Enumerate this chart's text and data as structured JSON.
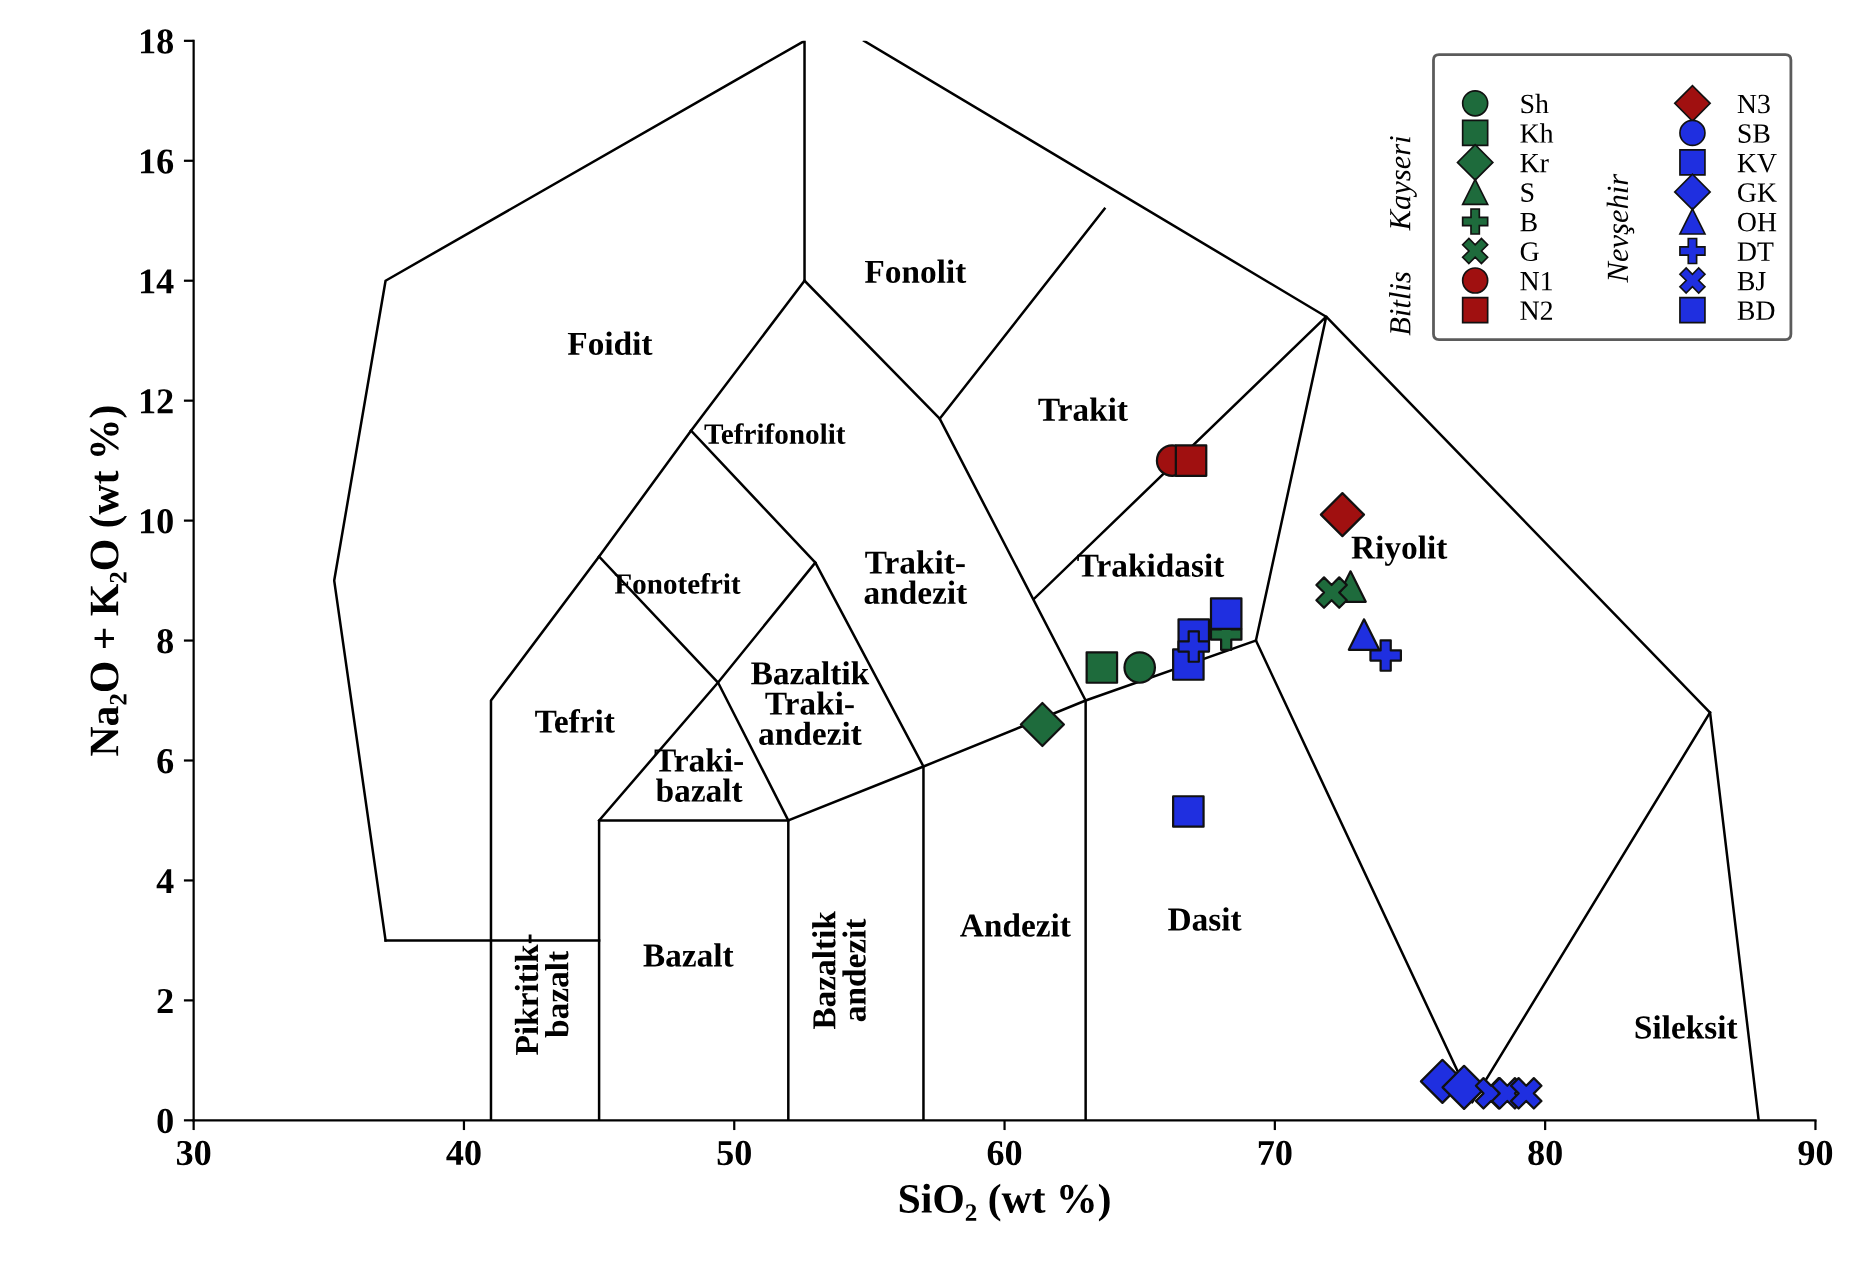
{
  "chart_data": {
    "type": "scatter",
    "xlabel": "SiO₂ (wt %)",
    "ylabel": "Na₂O + K₂O (wt %)",
    "xlim": [
      30,
      90
    ],
    "xticks": [
      30,
      40,
      50,
      60,
      70,
      80,
      90
    ],
    "ylim": [
      0,
      18
    ],
    "yticks": [
      0,
      2,
      4,
      6,
      8,
      10,
      12,
      14,
      16,
      18
    ],
    "grid": false,
    "legend": "top right",
    "series": [
      {
        "name": "Sh",
        "color": "#1e6b3c",
        "marker": "circle",
        "x": [
          65.0
        ],
        "values": [
          7.55
        ]
      },
      {
        "name": "Kh",
        "color": "#1e6b3c",
        "marker": "square",
        "x": [
          63.6
        ],
        "values": [
          7.55
        ]
      },
      {
        "name": "Kr",
        "color": "#1e6b3c",
        "marker": "diamond",
        "x": [
          61.4
        ],
        "values": [
          6.6
        ]
      },
      {
        "name": "S",
        "color": "#1e6b3c",
        "marker": "triangle",
        "x": [
          72.8
        ],
        "values": [
          8.9
        ]
      },
      {
        "name": "B",
        "color": "#1e6b3c",
        "marker": "plus",
        "x": [
          68.2
        ],
        "values": [
          8.1
        ]
      },
      {
        "name": "G",
        "color": "#1e6b3c",
        "marker": "cross",
        "x": [
          72.1
        ],
        "values": [
          8.8
        ]
      },
      {
        "name": "N1",
        "color": "#a01010",
        "marker": "circle",
        "x": [
          66.2
        ],
        "values": [
          11.0
        ]
      },
      {
        "name": "N2",
        "color": "#a01010",
        "marker": "square",
        "x": [
          66.9
        ],
        "values": [
          11.0
        ]
      },
      {
        "name": "N3",
        "color": "#a01010",
        "marker": "diamond",
        "x": [
          72.5
        ],
        "values": [
          10.1
        ]
      },
      {
        "name": "SB",
        "color": "#1f2fe0",
        "marker": "circle"
      },
      {
        "name": "KV",
        "color": "#1f2fe0",
        "marker": "square",
        "x": [
          67.0,
          66.8,
          66.8
        ],
        "values": [
          8.1,
          7.6,
          5.15
        ]
      },
      {
        "name": "GK",
        "color": "#1f2fe0",
        "marker": "diamond",
        "x": [
          76.2,
          77.0
        ],
        "values": [
          0.65,
          0.55
        ]
      },
      {
        "name": "OH",
        "color": "#1f2fe0",
        "marker": "triangle",
        "x": [
          73.3
        ],
        "values": [
          8.1
        ]
      },
      {
        "name": "DT",
        "color": "#1f2fe0",
        "marker": "plus",
        "x": [
          67.0,
          74.1
        ],
        "values": [
          7.9,
          7.75
        ]
      },
      {
        "name": "BJ",
        "color": "#1f2fe0",
        "marker": "cross",
        "x": [
          78.0,
          78.6,
          79.3
        ],
        "values": [
          0.45,
          0.45,
          0.45
        ]
      },
      {
        "name": "BD",
        "color": "#1f2fe0",
        "marker": "square",
        "x": [
          68.2
        ],
        "values": [
          8.45
        ]
      },
      {
        "type": "line",
        "color": "#000000",
        "x": [
          37.1,
          35.2,
          37.1,
          52.6,
          52.6
        ],
        "values": [
          3.0,
          9.0,
          14.0,
          18.0,
          14.0
        ]
      },
      {
        "type": "line",
        "color": "#000000",
        "x": [
          37.1,
          45.0
        ],
        "values": [
          3.0,
          3.0
        ]
      },
      {
        "type": "line",
        "color": "#000000",
        "x": [
          41.0,
          41.0,
          45.0,
          48.4,
          52.6
        ],
        "values": [
          0.0,
          7.0,
          9.4,
          11.5,
          14.0
        ]
      },
      {
        "type": "line",
        "color": "#000000",
        "x": [
          45.0,
          45.0,
          52.0,
          52.0
        ],
        "values": [
          0.0,
          5.0,
          5.0,
          0.0
        ]
      },
      {
        "type": "line",
        "color": "#000000",
        "x": [
          45.0,
          49.4,
          53.0
        ],
        "values": [
          5.0,
          7.3,
          9.3
        ]
      },
      {
        "type": "line",
        "color": "#000000",
        "x": [
          45.0,
          49.4,
          52.0
        ],
        "values": [
          9.4,
          7.3,
          5.0
        ]
      },
      {
        "type": "line",
        "color": "#000000",
        "x": [
          48.4,
          53.0,
          57.0,
          57.0
        ],
        "values": [
          11.5,
          9.3,
          5.9,
          0.0
        ]
      },
      {
        "type": "line",
        "color": "#000000",
        "x": [
          52.6,
          57.6,
          63.0,
          63.0
        ],
        "values": [
          14.0,
          11.7,
          7.0,
          0.0
        ]
      },
      {
        "type": "line",
        "color": "#000000",
        "x": [
          52.0,
          57.0,
          63.0,
          69.3
        ],
        "values": [
          5.0,
          5.9,
          7.0,
          8.0
        ]
      },
      {
        "type": "line",
        "color": "#000000",
        "x": [
          57.6,
          63.7
        ],
        "values": [
          11.7,
          15.2
        ]
      },
      {
        "type": "line",
        "color": "#000000",
        "x": [
          61.1,
          71.9,
          69.3,
          77.3,
          86.1
        ],
        "values": [
          8.7,
          13.4,
          8.0,
          0.3,
          6.8
        ]
      },
      {
        "type": "line",
        "color": "#000000",
        "x": [
          54.8,
          71.9,
          86.1,
          87.9
        ],
        "values": [
          18.0,
          13.4,
          6.8,
          0.0
        ]
      }
    ],
    "annotations": [
      "Foidit",
      "Fonolit",
      "Tefrifonolit",
      "Trakit",
      "Fonotefrit",
      "Trakit-\nandezit",
      "Trakidasit",
      "Riyolit",
      "Bazaltik\nTraki-\nandezit",
      "Tefrit",
      "Traki-\nbazalt",
      "Andezit",
      "Dasit",
      "Bazalt",
      "Bazaltik\nandezit",
      "Pikritik-\nbazalt",
      "Sileksit",
      "Kayseri",
      "Bitlis",
      "Nevşehir"
    ]
  }
}
